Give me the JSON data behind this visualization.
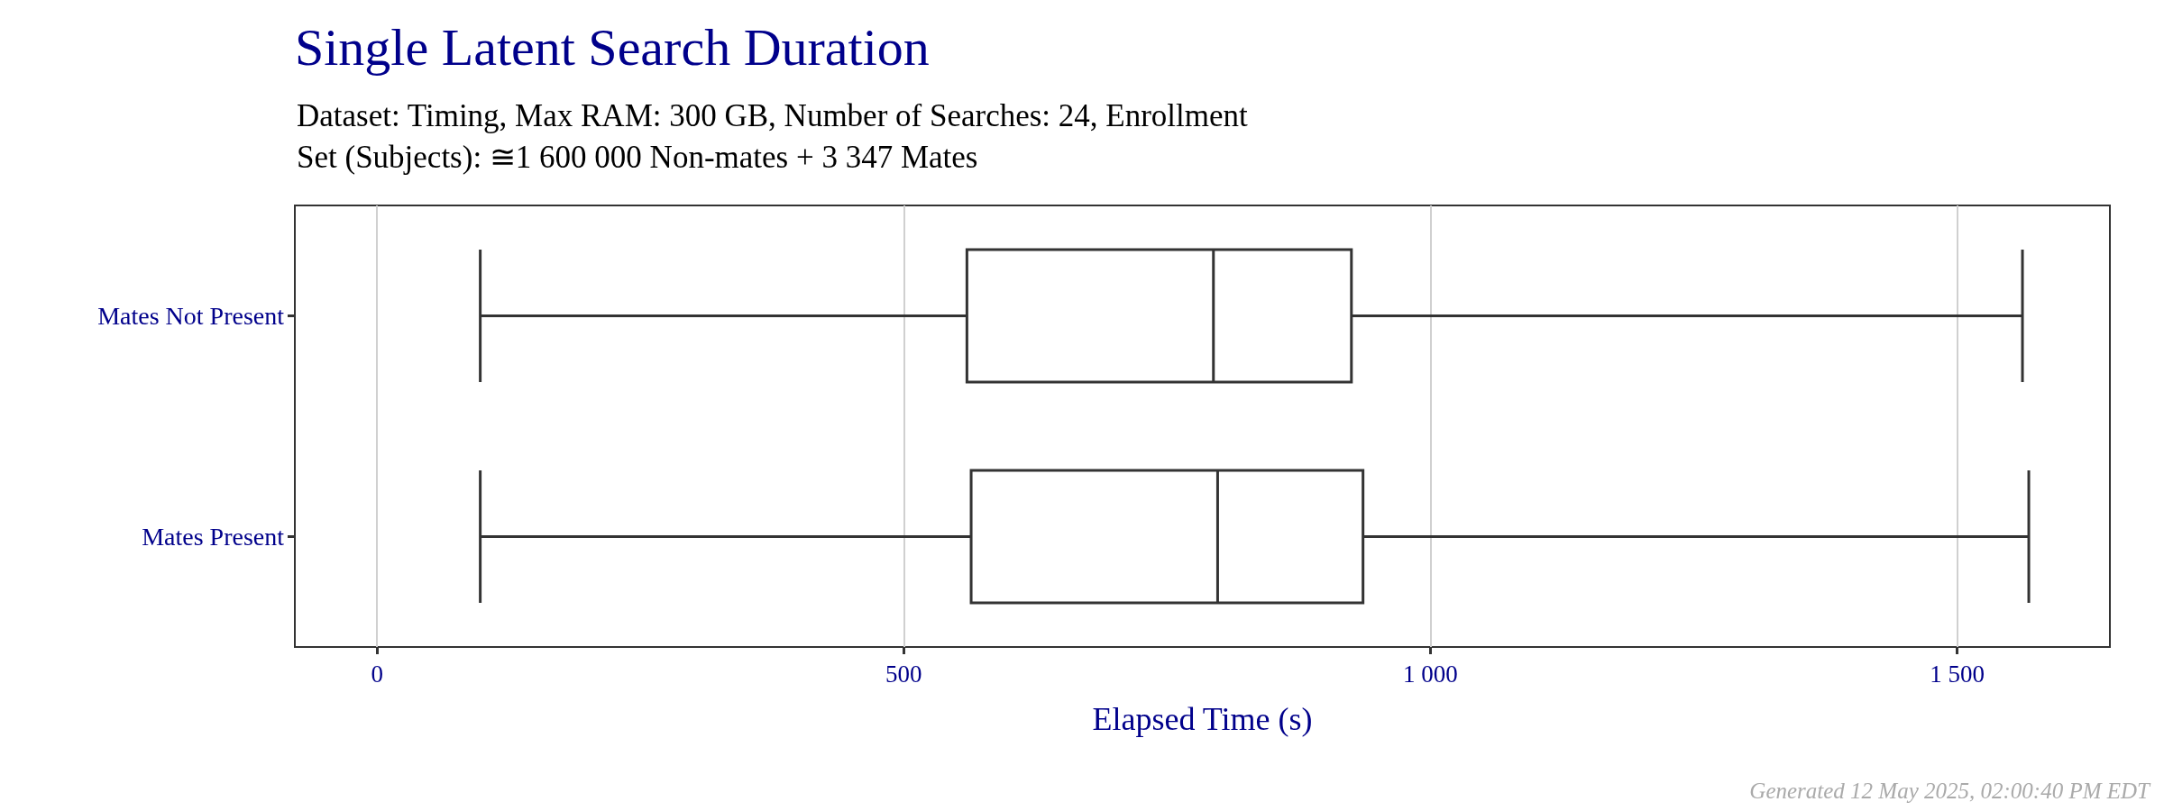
{
  "chart_data": {
    "type": "box",
    "orientation": "horizontal",
    "title": "Single Latent Search Duration",
    "subtitle": "Dataset: Timing, Max RAM: 300 GB, Number of Searches: 24, Enrollment Set (Subjects): ≅1 600 000 Non-mates + 3 347 Mates",
    "xlabel": "Elapsed Time (s)",
    "categories": [
      "Mates Not Present",
      "Mates Present"
    ],
    "boxes": [
      {
        "low": 98,
        "q1": 560,
        "median": 794,
        "q3": 925,
        "high": 1562
      },
      {
        "low": 98,
        "q1": 564,
        "median": 798,
        "q3": 936,
        "high": 1568
      }
    ],
    "color": "#333333",
    "xlim": [
      -78,
      1645
    ],
    "xticks": [
      0,
      500,
      {
        "value": 1000,
        "label": "1 000"
      },
      {
        "value": 1500,
        "label": "1 500"
      }
    ],
    "grid": "x",
    "annotations": [
      "Generated 12 May 2025, 02:00:40 PM EDT"
    ]
  }
}
